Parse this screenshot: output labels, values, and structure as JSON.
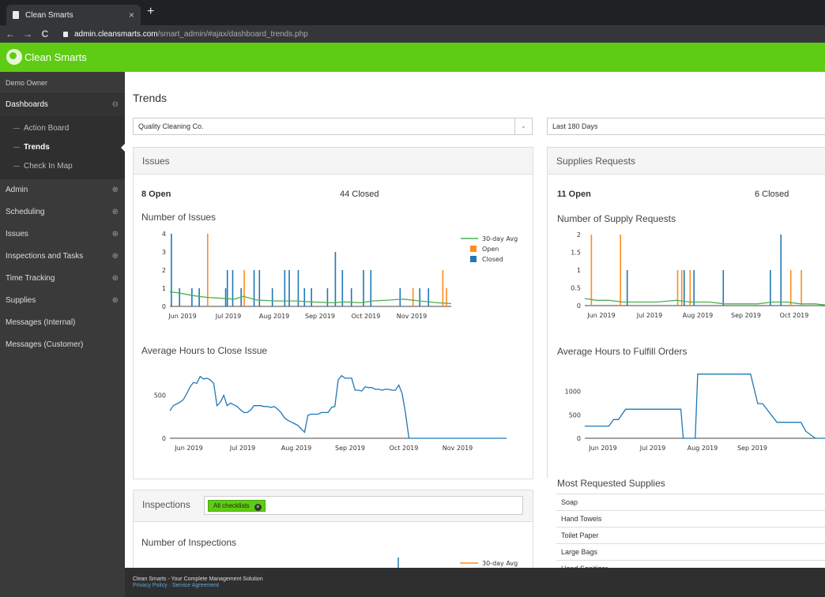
{
  "browser": {
    "tab_title": "Clean Smarts",
    "url_host": "admin.cleansmarts.com",
    "url_path": "/smart_admin/#ajax/dashboard_trends.php",
    "back": "←",
    "forward": "→",
    "reload": "C",
    "close_tab": "×",
    "new_tab": "+"
  },
  "app": {
    "brand": "Clean Smarts",
    "accent": "#5fcc14"
  },
  "sidebar": {
    "owner": "Demo Owner",
    "dashboards": "Dashboards",
    "dashboards_toggle": "⊖",
    "sub_items": [
      {
        "label": "Action Board"
      },
      {
        "label": "Trends"
      },
      {
        "label": "Check In Map"
      }
    ],
    "items": [
      {
        "label": "Admin",
        "toggle": "⊕"
      },
      {
        "label": "Scheduling",
        "toggle": "⊕"
      },
      {
        "label": "Issues",
        "toggle": "⊕"
      },
      {
        "label": "Inspections and Tasks",
        "toggle": "⊕"
      },
      {
        "label": "Time Tracking",
        "toggle": "⊕"
      },
      {
        "label": "Supplies",
        "toggle": "⊕"
      },
      {
        "label": "Messages (Internal)",
        "toggle": ""
      },
      {
        "label": "Messages (Customer)",
        "toggle": ""
      }
    ]
  },
  "main": {
    "title": "Trends",
    "company_select": "Quality Cleaning Co.",
    "period_select": "Last 180 Days",
    "issues": {
      "heading": "Issues",
      "open": "8 Open",
      "closed": "44 Closed",
      "count_title": "Number of Issues",
      "hours_title": "Average Hours to Close Issue"
    },
    "supplies": {
      "heading": "Supplies Requests",
      "open": "11 Open",
      "closed": "6 Closed",
      "count_title": "Number of Supply Requests",
      "hours_title": "Average Hours to Fulfill Orders",
      "most_title": "Most Requested Supplies",
      "most_items": [
        "Soap",
        "Hand Towels",
        "Toilet Paper",
        "Large Bags",
        "Hand Sanitizer"
      ]
    },
    "inspections": {
      "heading": "Inspections",
      "filter_chip": "All checklists",
      "count_title": "Number of Inspections",
      "legend_avg": "30-day Avg"
    }
  },
  "footer": {
    "text": "Clean Smarts - Your Complete Management Solution",
    "privacy": "Privacy Policy",
    "agreement": "Service Agreement"
  },
  "chart_data": [
    {
      "type": "bar",
      "id": "issues_count",
      "title": "Number of Issues",
      "x_ticks": [
        "Jun 2019",
        "Jul 2019",
        "Aug 2019",
        "Sep 2019",
        "Oct 2019",
        "Nov 2019"
      ],
      "ylim": [
        0,
        4
      ],
      "y_ticks": [
        0,
        1,
        2,
        3,
        4
      ],
      "legend": [
        "30-day Avg",
        "Open",
        "Closed"
      ],
      "legend_position": "top-right",
      "colors": {
        "avg": "#4caf50",
        "open": "#ff8c1a",
        "closed": "#1f78b4"
      },
      "series": [
        {
          "name": "Closed",
          "x": [
            0.3,
            3.2,
            7.6,
            10.2,
            19.6,
            20.2,
            22.1,
            25.1,
            29.7,
            31.6,
            36.2,
            40.6,
            42.2,
            45.4,
            47.6,
            50.1,
            55.8,
            58.6,
            61.1,
            64.3,
            68.6,
            71.2,
            81.6,
            88.6,
            91.7
          ],
          "values": [
            4,
            1,
            1,
            1,
            1,
            2,
            2,
            1,
            2,
            2,
            1,
            2,
            2,
            2,
            1,
            1,
            1,
            3,
            2,
            1,
            2,
            2,
            1,
            1,
            1
          ]
        },
        {
          "name": "Open",
          "x": [
            13.2,
            26.2,
            86.2,
            96.8,
            98.1
          ],
          "values": [
            4,
            2,
            1,
            2,
            1
          ]
        },
        {
          "name": "30-day Avg",
          "x": [
            0,
            3,
            8,
            13,
            18,
            23,
            26,
            31,
            38,
            45,
            50,
            58,
            62,
            68,
            72,
            78,
            83,
            89,
            95,
            100
          ],
          "values": [
            0.8,
            0.75,
            0.6,
            0.5,
            0.45,
            0.4,
            0.55,
            0.35,
            0.3,
            0.3,
            0.25,
            0.2,
            0.25,
            0.2,
            0.3,
            0.35,
            0.4,
            0.3,
            0.2,
            0.15
          ]
        }
      ]
    },
    {
      "type": "line",
      "id": "issues_hours",
      "title": "Average Hours to Close Issue",
      "x_ticks": [
        "Jun 2019",
        "Jul 2019",
        "Aug 2019",
        "Sep 2019",
        "Oct 2019",
        "Nov 2019"
      ],
      "y_ticks": [
        0,
        500
      ],
      "ylim": [
        0,
        800
      ],
      "series": [
        {
          "name": "",
          "x": [
            0,
            1,
            2,
            3,
            4,
            5,
            6,
            7,
            8,
            9,
            10,
            11,
            12,
            13,
            14,
            15,
            16,
            17,
            18,
            19,
            20,
            21,
            22,
            23,
            24,
            25,
            26,
            27,
            28,
            29,
            30,
            31,
            32,
            33,
            34,
            35,
            36,
            37,
            38,
            39,
            40,
            41,
            42,
            43,
            44,
            45,
            46,
            47,
            48,
            49,
            50,
            51,
            52,
            53,
            54,
            55,
            56,
            57,
            58,
            59,
            60,
            61,
            62,
            63,
            64,
            65,
            66,
            67,
            68,
            69,
            70,
            71,
            72,
            73,
            74,
            75,
            76,
            77,
            78,
            79,
            80,
            81,
            82,
            83,
            84,
            85,
            86,
            87,
            88,
            89,
            90,
            91,
            92,
            93,
            94,
            95,
            96,
            97,
            98,
            99,
            100
          ],
          "values": [
            320,
            380,
            400,
            420,
            450,
            520,
            600,
            650,
            640,
            720,
            690,
            700,
            680,
            640,
            380,
            420,
            500,
            380,
            410,
            390,
            370,
            330,
            300,
            300,
            330,
            380,
            380,
            380,
            370,
            370,
            360,
            370,
            340,
            300,
            240,
            210,
            190,
            170,
            150,
            110,
            70,
            270,
            280,
            280,
            280,
            300,
            300,
            300,
            360,
            370,
            680,
            730,
            700,
            700,
            700,
            560,
            560,
            550,
            600,
            590,
            590,
            570,
            570,
            560,
            570,
            570,
            560,
            560,
            620,
            520,
            290,
            0,
            0,
            0,
            0,
            0,
            0,
            0,
            0,
            0,
            0,
            0,
            0,
            0,
            0,
            0,
            0,
            0,
            0,
            0,
            0,
            0,
            0,
            0,
            0,
            0,
            0,
            0,
            0,
            0,
            0
          ]
        }
      ]
    },
    {
      "type": "bar",
      "id": "supplies_count",
      "title": "Number of Supply Requests",
      "x_ticks": [
        "Jun 2019",
        "Jul 2019",
        "Aug 2019",
        "Sep 2019",
        "Oct 2019"
      ],
      "ylim": [
        0,
        2
      ],
      "y_ticks": [
        0,
        0.5,
        1,
        1.5,
        2
      ],
      "series": [
        {
          "name": "Open",
          "x": [
            2.5,
            14.6,
            38.4,
            40.1,
            43.6,
            85.5,
            89.9
          ],
          "values": [
            2,
            2,
            1,
            1,
            1,
            1,
            1
          ]
        },
        {
          "name": "Closed",
          "x": [
            17.4,
            41.1,
            45.2,
            57.4,
            77.0,
            81.4
          ],
          "values": [
            1,
            1,
            1,
            1,
            1,
            2
          ]
        },
        {
          "name": "30-day Avg",
          "x": [
            0,
            5,
            10,
            16,
            22,
            30,
            38,
            44,
            52,
            58,
            66,
            72,
            78,
            84,
            90,
            96,
            100
          ],
          "values": [
            0.2,
            0.15,
            0.15,
            0.1,
            0.1,
            0.1,
            0.15,
            0.1,
            0.1,
            0.05,
            0.05,
            0.05,
            0.1,
            0.1,
            0.05,
            0.05,
            0.02
          ]
        }
      ]
    },
    {
      "type": "line",
      "id": "supplies_hours",
      "title": "Average Hours to Fulfill Orders",
      "x_ticks": [
        "Jun 2019",
        "Jul 2019",
        "Aug 2019",
        "Sep 2019"
      ],
      "y_ticks": [
        0,
        500,
        1000
      ],
      "ylim": [
        0,
        1500
      ],
      "series": [
        {
          "name": "",
          "x": [
            0,
            10,
            12,
            14,
            17,
            40,
            41,
            46,
            47,
            50,
            68,
            69,
            72,
            74,
            80,
            90,
            92,
            96,
            100
          ],
          "values": [
            260,
            260,
            400,
            400,
            620,
            620,
            0,
            0,
            1370,
            1370,
            1370,
            1370,
            740,
            740,
            340,
            340,
            150,
            0,
            0
          ]
        }
      ]
    }
  ]
}
